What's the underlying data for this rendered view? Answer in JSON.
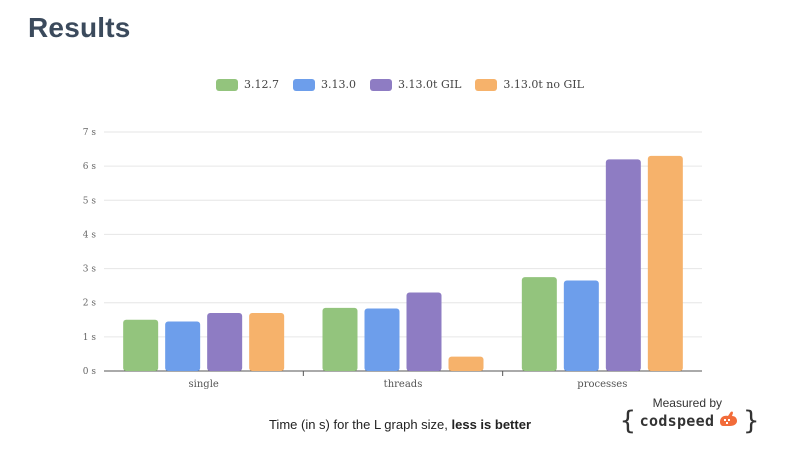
{
  "heading": "Results",
  "caption": {
    "prefix": "Time (in s) for the L graph size, ",
    "emphasis": "less is better"
  },
  "measured_by": "Measured by",
  "brand": {
    "open_brace": "{",
    "name": "codspeed",
    "close_brace": "}",
    "logo_icon": "rabbit-icon",
    "logo_color": "#f26c3a"
  },
  "chart_data": {
    "type": "bar",
    "categories": [
      "single",
      "threads",
      "processes"
    ],
    "series": [
      {
        "name": "3.12.7",
        "color": "#93c47d",
        "values": [
          1.5,
          1.85,
          2.75
        ]
      },
      {
        "name": "3.13.0",
        "color": "#6d9eeb",
        "values": [
          1.45,
          1.83,
          2.65
        ]
      },
      {
        "name": "3.13.0t GIL",
        "color": "#8e7cc3",
        "values": [
          1.7,
          2.3,
          6.2
        ]
      },
      {
        "name": "3.13.0t no GIL",
        "color": "#f6b26b",
        "values": [
          1.7,
          0.42,
          6.3
        ]
      }
    ],
    "ylim": [
      0,
      7
    ],
    "yticks": [
      "0 s",
      "1 s",
      "2 s",
      "3 s",
      "4 s",
      "5 s",
      "6 s",
      "7 s"
    ],
    "ylabel": "",
    "xlabel": "",
    "legend_position": "top-center",
    "grid": true
  }
}
